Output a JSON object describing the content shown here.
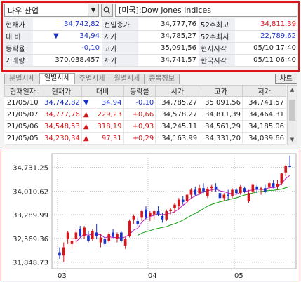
{
  "search": {
    "index_name": "다우 산업",
    "dropdown_icon": "chevron-down-icon",
    "search_icon": "magnifier-icon",
    "display_name": "[미국]:Dow Jones Indices"
  },
  "summary": {
    "rows": [
      {
        "l1": "현재가",
        "v1": "34,742,82",
        "l2": "전일종가",
        "v2": "34,777,76",
        "l3": "52주최고",
        "v3": "34,811,39"
      },
      {
        "l1": "대  비",
        "v1": "34,94",
        "l2": "시가",
        "v2": "34,785,27",
        "l3": "52주최저",
        "v3": "22,789,62"
      },
      {
        "l1": "등락율",
        "v1": "-0,10",
        "l2": "고가",
        "v2": "35,091,56",
        "l3": "현지시각",
        "v3": "05/10 17:40"
      },
      {
        "l1": "거래량",
        "v1": "370,038,457",
        "l2": "저가",
        "v2": "34,741,57",
        "l3": "한국시각",
        "v3": "05/11 06:40"
      }
    ],
    "change_marker": "▼"
  },
  "tabs": {
    "items": [
      "분별시세",
      "일별시세",
      "주별시세",
      "월별시세",
      "종목정보"
    ],
    "active": 1,
    "chart_button": "차트"
  },
  "daily": {
    "headers": [
      "현재일자",
      "현재가",
      "대비",
      "등락률",
      "시가",
      "고가",
      "저가"
    ],
    "rows": [
      {
        "date": "21/05/10",
        "price": "34,742,82",
        "mark": "▼",
        "diff": "34,94",
        "rate": "-0,10",
        "open": "34,785,27",
        "high": "35,091,56",
        "low": "34,741,57",
        "dir": "down"
      },
      {
        "date": "21/05/07",
        "price": "34,777,76",
        "mark": "▲",
        "diff": "229,23",
        "rate": "+0,66",
        "open": "34,578,27",
        "high": "34,811,39",
        "low": "34,464,31",
        "dir": "up"
      },
      {
        "date": "21/05/06",
        "price": "34,548,53",
        "mark": "▲",
        "diff": "318,19",
        "rate": "+0,93",
        "open": "34,245,11",
        "high": "34,561,29",
        "low": "34,185,06",
        "dir": "up"
      },
      {
        "date": "21/05/05",
        "price": "34,230,34",
        "mark": "▲",
        "diff": "97,31",
        "rate": "+0,29",
        "open": "34,163,99",
        "high": "34,331,20",
        "low": "34,039,66",
        "dir": "up"
      }
    ]
  },
  "colors": {
    "up": "#d8151c",
    "down": "#1a32c8",
    "highlight": "#e0141b",
    "ma_short": "#c020c0",
    "ma_long": "#12a012"
  },
  "chart_data": {
    "type": "candlestick",
    "y_ticks": [
      "34,731.25",
      "34,010.62",
      "33,289.99",
      "32,569.36",
      "31,848.73"
    ],
    "y_tick_values": [
      34731.25,
      34010.62,
      33289.99,
      32569.36,
      31848.73
    ],
    "x_ticks": [
      "03",
      "04",
      "05"
    ],
    "ylim": [
      31650,
      35150
    ],
    "series": [
      {
        "o": 32150,
        "h": 32300,
        "l": 31950,
        "c": 32050
      },
      {
        "o": 32050,
        "h": 32450,
        "l": 31850,
        "c": 32300
      },
      {
        "o": 32550,
        "h": 32800,
        "l": 32400,
        "c": 32750
      },
      {
        "o": 32400,
        "h": 32600,
        "l": 32250,
        "c": 32500
      },
      {
        "o": 32550,
        "h": 32850,
        "l": 32450,
        "c": 32750
      },
      {
        "o": 32850,
        "h": 32950,
        "l": 32600,
        "c": 32650
      },
      {
        "o": 32650,
        "h": 32950,
        "l": 32550,
        "c": 32900
      },
      {
        "o": 32650,
        "h": 32800,
        "l": 32450,
        "c": 32500
      },
      {
        "o": 32550,
        "h": 32850,
        "l": 32500,
        "c": 32780
      },
      {
        "o": 32750,
        "h": 33000,
        "l": 32550,
        "c": 32650
      },
      {
        "o": 32450,
        "h": 32700,
        "l": 32300,
        "c": 32600
      },
      {
        "o": 32550,
        "h": 32650,
        "l": 32350,
        "c": 32400
      },
      {
        "o": 32500,
        "h": 32750,
        "l": 32450,
        "c": 32700
      },
      {
        "o": 32750,
        "h": 32850,
        "l": 32600,
        "c": 32620
      },
      {
        "o": 32550,
        "h": 32750,
        "l": 32450,
        "c": 32700
      },
      {
        "o": 32750,
        "h": 32800,
        "l": 32450,
        "c": 32500
      },
      {
        "o": 32350,
        "h": 32600,
        "l": 32250,
        "c": 32550
      },
      {
        "o": 32650,
        "h": 33150,
        "l": 32600,
        "c": 33100
      },
      {
        "o": 33150,
        "h": 33300,
        "l": 33000,
        "c": 33250
      },
      {
        "o": 33100,
        "h": 33200,
        "l": 32950,
        "c": 33000
      },
      {
        "o": 33200,
        "h": 33450,
        "l": 33100,
        "c": 33400
      },
      {
        "o": 33450,
        "h": 33550,
        "l": 33150,
        "c": 33200
      },
      {
        "o": 33250,
        "h": 33400,
        "l": 33100,
        "c": 33350
      },
      {
        "o": 33300,
        "h": 33450,
        "l": 33150,
        "c": 33400
      },
      {
        "o": 33400,
        "h": 33550,
        "l": 33250,
        "c": 33300
      },
      {
        "o": 33250,
        "h": 33350,
        "l": 33050,
        "c": 33150
      },
      {
        "o": 33150,
        "h": 33450,
        "l": 33100,
        "c": 33400
      },
      {
        "o": 33400,
        "h": 33500,
        "l": 33300,
        "c": 33450
      },
      {
        "o": 33500,
        "h": 33650,
        "l": 33350,
        "c": 33600
      },
      {
        "o": 33550,
        "h": 33800,
        "l": 33450,
        "c": 33750
      },
      {
        "o": 33750,
        "h": 33850,
        "l": 33600,
        "c": 33680
      },
      {
        "o": 33700,
        "h": 33950,
        "l": 33650,
        "c": 33900
      },
      {
        "o": 33900,
        "h": 34100,
        "l": 33800,
        "c": 34050
      },
      {
        "o": 34050,
        "h": 34150,
        "l": 33850,
        "c": 33900
      },
      {
        "o": 33950,
        "h": 34200,
        "l": 33900,
        "c": 34100
      },
      {
        "o": 34100,
        "h": 34250,
        "l": 33950,
        "c": 34000
      },
      {
        "o": 33850,
        "h": 34150,
        "l": 33800,
        "c": 34080
      },
      {
        "o": 34100,
        "h": 34200,
        "l": 34000,
        "c": 34150
      },
      {
        "o": 34150,
        "h": 34250,
        "l": 34000,
        "c": 34050
      },
      {
        "o": 33950,
        "h": 34050,
        "l": 33700,
        "c": 33800
      },
      {
        "o": 33800,
        "h": 33950,
        "l": 33700,
        "c": 33900
      },
      {
        "o": 33900,
        "h": 34050,
        "l": 33750,
        "c": 33850
      },
      {
        "o": 33850,
        "h": 34100,
        "l": 33800,
        "c": 34050
      },
      {
        "o": 34050,
        "h": 34100,
        "l": 33900,
        "c": 33950
      },
      {
        "o": 33950,
        "h": 34200,
        "l": 33900,
        "c": 34150
      },
      {
        "o": 34100,
        "h": 34150,
        "l": 33950,
        "c": 34000
      },
      {
        "o": 33700,
        "h": 34050,
        "l": 33650,
        "c": 33950
      },
      {
        "o": 34000,
        "h": 34250,
        "l": 33950,
        "c": 34200
      },
      {
        "o": 34150,
        "h": 34200,
        "l": 33950,
        "c": 34050
      },
      {
        "o": 34050,
        "h": 34150,
        "l": 33900,
        "c": 34100
      },
      {
        "o": 34100,
        "h": 34200,
        "l": 33950,
        "c": 34000
      },
      {
        "o": 34150,
        "h": 34300,
        "l": 34050,
        "c": 34250
      },
      {
        "o": 34250,
        "h": 34350,
        "l": 34100,
        "c": 34150
      },
      {
        "o": 34150,
        "h": 34350,
        "l": 34050,
        "c": 34230
      },
      {
        "o": 34245,
        "h": 34561,
        "l": 34185,
        "c": 34548
      },
      {
        "o": 34578,
        "h": 34811,
        "l": 34464,
        "c": 34777
      },
      {
        "o": 34785,
        "h": 35091,
        "l": 34741,
        "c": 34742
      }
    ]
  }
}
